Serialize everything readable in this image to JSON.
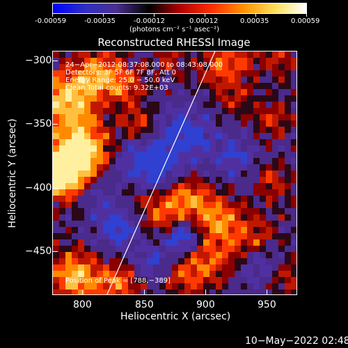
{
  "colorbar": {
    "ticks": [
      "-0.00059",
      "-0.00035",
      "-0.00012",
      "0.00012",
      "0.00035",
      "0.00059"
    ],
    "units": "(photons cm⁻² s⁻¹ asec⁻²)",
    "colors": [
      "#0000ff",
      "#3030c0",
      "#4a3090",
      "#000000",
      "#b00000",
      "#ff3000",
      "#ff9000",
      "#ffe060",
      "#ffffff"
    ]
  },
  "plot": {
    "title": "Reconstructed RHESSI Image",
    "xlabel": "Heliocentric X (arcsec)",
    "ylabel": "Heliocentric Y (arcsec)",
    "xticks": [
      "800",
      "850",
      "900",
      "950"
    ],
    "yticks": [
      "−300",
      "−350",
      "−400",
      "−450"
    ]
  },
  "overlay": {
    "line1": "24−Apr−2012 08:37:08.000 to 08:43:08.000",
    "line2": "Detectors: 3F 5F 6F 7F 8F, Att 0",
    "line3": "Energy Range: 25.0 − 50.0 keV",
    "line4": "Clean     Total counts: 9.32E+03",
    "peak": "Position of Peak = [788,−389]"
  },
  "footer": {
    "timestamp": "10−May−2022 02:48"
  },
  "chart_data": {
    "type": "heatmap",
    "title": "Reconstructed RHESSI Image",
    "xlabel": "Heliocentric X (arcsec)",
    "ylabel": "Heliocentric Y (arcsec)",
    "xlim": [
      778,
      970
    ],
    "ylim": [
      -485,
      -293
    ],
    "colorbar_range": [
      -0.00059,
      0.00059
    ],
    "peak": [
      788,
      -389
    ],
    "limb_line": {
      "x": [
        820,
        905
      ],
      "y": [
        -485,
        -293
      ]
    }
  }
}
